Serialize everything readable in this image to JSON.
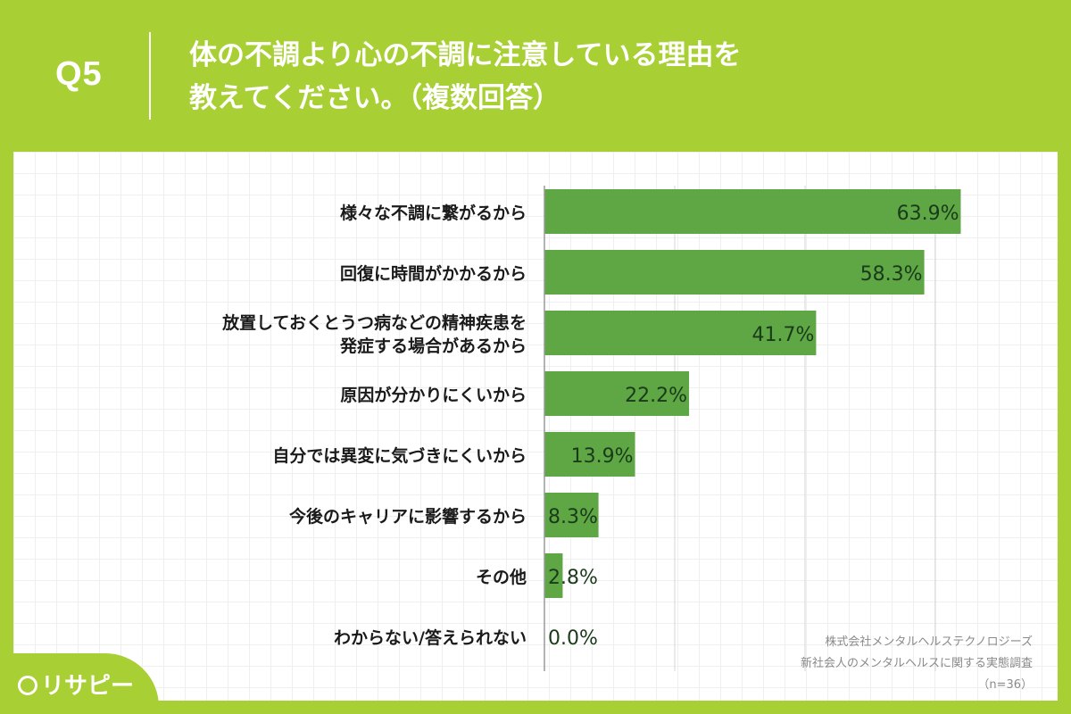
{
  "header": {
    "question_label": "Q5",
    "title_line1": "体の不調より心の不調に注意している理由を",
    "title_line2": "教えてください。（複数回答）"
  },
  "chart_data": {
    "type": "bar",
    "orientation": "horizontal",
    "categories": [
      [
        "様々な不調に繋がるから"
      ],
      [
        "回復に時間がかかるから"
      ],
      [
        "放置しておくとうつ病などの精神疾患を",
        "発症する場合があるから"
      ],
      [
        "原因が分かりにくいから"
      ],
      [
        "自分では異変に気づきにくいから"
      ],
      [
        "今後のキャリアに影響するから"
      ],
      [
        "その他"
      ],
      [
        "わからない/答えられない"
      ]
    ],
    "values": [
      63.9,
      58.3,
      41.7,
      22.2,
      13.9,
      8.3,
      2.8,
      0.0
    ],
    "value_labels": [
      "63.9%",
      "58.3%",
      "41.7%",
      "22.2%",
      "13.9%",
      "8.3%",
      "2.8%",
      "0.0%"
    ],
    "xlim": [
      0,
      64
    ],
    "grid": true,
    "bar_color": "#5fa645",
    "label_color": "#1a3b1a"
  },
  "source": {
    "line1": "株式会社メンタルヘルステクノロジーズ",
    "line2": "新社会人のメンタルヘルスに関する実態調査",
    "line3": "（n=36）"
  },
  "logo": {
    "text": "リサピー",
    "icon": "location-pin-icon"
  },
  "colors": {
    "background": "#a8cf33",
    "panel": "#ffffff",
    "bar": "#5fa645"
  }
}
